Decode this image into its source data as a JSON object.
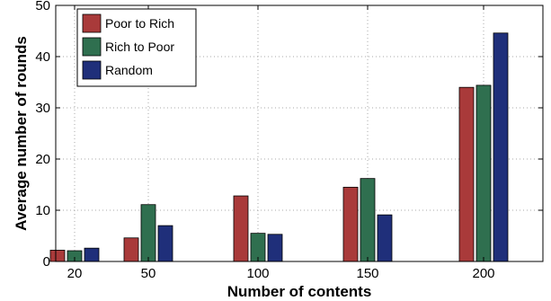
{
  "chart_data": {
    "type": "bar",
    "categories": [
      "20",
      "50",
      "100",
      "150",
      "200"
    ],
    "series": [
      {
        "name": "Poor to Rich",
        "color": "#a93a3a",
        "values": [
          2.2,
          4.6,
          12.8,
          14.5,
          34.0
        ]
      },
      {
        "name": "Rich to Poor",
        "color": "#2f6f4f",
        "values": [
          2.1,
          11.1,
          5.5,
          16.2,
          34.4
        ]
      },
      {
        "name": "Random",
        "color": "#1f2f7a",
        "values": [
          2.6,
          7.0,
          5.3,
          9.1,
          44.6
        ]
      }
    ],
    "xlabel": "Number of contents",
    "ylabel": "Average number of rounds",
    "ylim": [
      0,
      50
    ],
    "yticks": [
      "0",
      "10",
      "20",
      "30",
      "40",
      "50"
    ],
    "grid": true,
    "legend_position": "top-left"
  }
}
